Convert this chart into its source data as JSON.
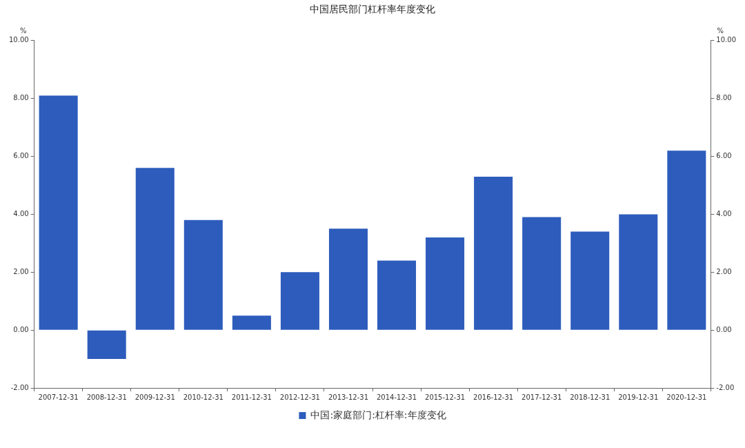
{
  "chart_data": {
    "type": "bar",
    "title": "中国居民部门杠杆率年度变化",
    "categories": [
      "2007-12-31",
      "2008-12-31",
      "2009-12-31",
      "2010-12-31",
      "2011-12-31",
      "2012-12-31",
      "2013-12-31",
      "2014-12-31",
      "2015-12-31",
      "2016-12-31",
      "2017-12-31",
      "2018-12-31",
      "2019-12-31",
      "2020-12-31"
    ],
    "series": [
      {
        "name": "中国:家庭部门:杠杆率:年度变化",
        "color": "#2d5cbc",
        "values": [
          8.1,
          -1.0,
          5.6,
          3.8,
          0.5,
          2.0,
          3.5,
          2.4,
          3.2,
          5.3,
          3.9,
          3.4,
          4.0,
          6.2
        ]
      }
    ],
    "ylabel": "%",
    "y2label": "%",
    "ylim": [
      -2,
      10
    ],
    "yticks": [
      {
        "value": -2,
        "label": "-2.00"
      },
      {
        "value": 0,
        "label": "0.00"
      },
      {
        "value": 2,
        "label": "2.00"
      },
      {
        "value": 4,
        "label": "4.00"
      },
      {
        "value": 6,
        "label": "6.00"
      },
      {
        "value": 8,
        "label": "8.00"
      },
      {
        "value": 10,
        "label": "10.00"
      }
    ],
    "y2lim": [
      -2,
      10
    ],
    "y2ticks": [
      {
        "value": -2,
        "label": "-2.00"
      },
      {
        "value": 0,
        "label": "0.00"
      },
      {
        "value": 2,
        "label": "2.00"
      },
      {
        "value": 4,
        "label": "4.00"
      },
      {
        "value": 6,
        "label": "6.00"
      },
      {
        "value": 8,
        "label": "8.00"
      },
      {
        "value": 10,
        "label": "10.00"
      }
    ],
    "grid": false,
    "legend": "bottom"
  }
}
